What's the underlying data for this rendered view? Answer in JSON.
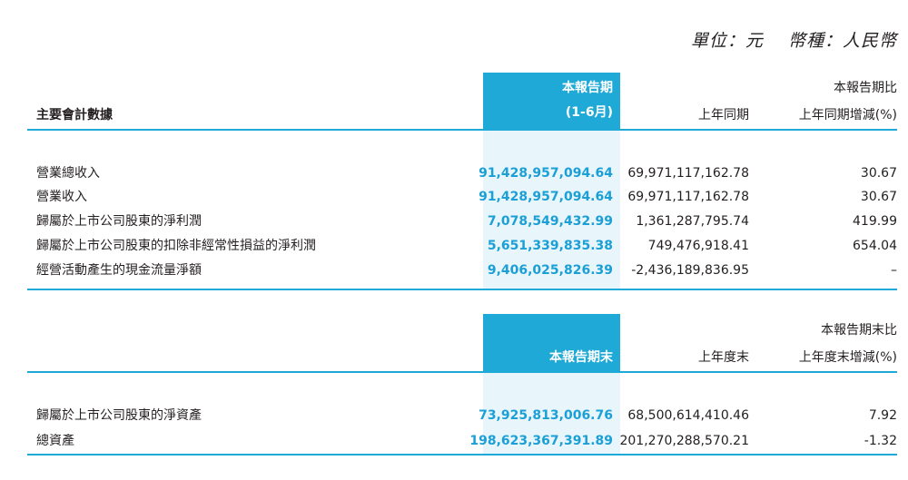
{
  "unit": {
    "label": "單位：元",
    "currency": "幣種：人民幣"
  },
  "section1": {
    "header": {
      "label": "主要會計數據",
      "current_line1": "本報告期",
      "current_line2": "(1-6月)",
      "previous": "上年同期",
      "change_line1": "本報告期比",
      "change_line2": "上年同期增減(%)"
    },
    "rows": [
      {
        "label": "營業總收入",
        "current": "91,428,957,094.64",
        "previous": "69,971,117,162.78",
        "change": "30.67"
      },
      {
        "label": "營業收入",
        "current": "91,428,957,094.64",
        "previous": "69,971,117,162.78",
        "change": "30.67"
      },
      {
        "label": "歸屬於上市公司股東的淨利潤",
        "current": "7,078,549,432.99",
        "previous": "1,361,287,795.74",
        "change": "419.99"
      },
      {
        "label": "歸屬於上市公司股東的扣除非經常性損益的淨利潤",
        "current": "5,651,339,835.38",
        "previous": "749,476,918.41",
        "change": "654.04"
      },
      {
        "label": "經營活動產生的現金流量淨額",
        "current": "9,406,025,826.39",
        "previous": "-2,436,189,836.95",
        "change": "–"
      }
    ]
  },
  "section2": {
    "header": {
      "current": "本報告期末",
      "previous": "上年度末",
      "change_line1": "本報告期末比",
      "change_line2": "上年度末增減(%)"
    },
    "rows": [
      {
        "label": "歸屬於上市公司股東的淨資產",
        "current": "73,925,813,006.76",
        "previous": "68,500,614,410.46",
        "change": "7.92"
      },
      {
        "label": "總資產",
        "current": "198,623,367,391.89",
        "previous": "201,270,288,570.21",
        "change": "-1.32"
      }
    ]
  }
}
